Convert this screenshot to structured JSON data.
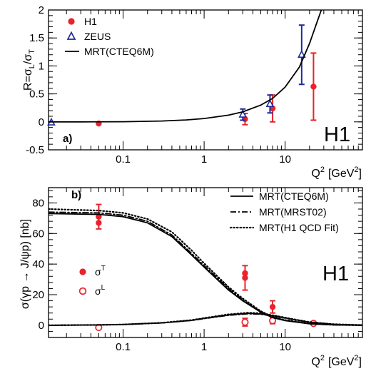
{
  "chart_data": [
    {
      "panel_label": "a)",
      "type": "scatter",
      "watermark": "H1",
      "xscale": "log",
      "xlim": [
        0.012,
        90
      ],
      "ylim": [
        -0.5,
        2
      ],
      "yticks": [
        -0.5,
        0,
        0.5,
        1,
        1.5,
        2
      ],
      "xlabel_base": "Q",
      "xlabel_sup": "2",
      "xlabel_unit": "[GeV",
      "xlabel_unit_sup": "2",
      "xlabel_close": "]",
      "ylabel_r": "R=σ",
      "ylabel_l_sub": "L",
      "ylabel_slash": "/σ",
      "ylabel_t_sub": "T",
      "legend_position": "top-left",
      "series": [
        {
          "name": "H1",
          "marker": "circle",
          "color": "#e8232b",
          "points": [
            {
              "x": 0.05,
              "y": -0.03,
              "err": 0
            },
            {
              "x": 3.2,
              "y": 0.05,
              "err": 0.1
            },
            {
              "x": 7.0,
              "y": 0.24,
              "err": 0.24
            },
            {
              "x": 22.4,
              "y": 0.63,
              "err": 0.6
            }
          ]
        },
        {
          "name": "ZEUS",
          "marker": "triangle",
          "color": "#1e2d9a",
          "points": [
            {
              "x": 0.013,
              "y": -0.01,
              "err": 0
            },
            {
              "x": 3.0,
              "y": 0.13,
              "err": 0.1
            },
            {
              "x": 6.5,
              "y": 0.32,
              "err": 0.16
            },
            {
              "x": 16.0,
              "y": 1.2,
              "err": 0.53
            }
          ]
        },
        {
          "name": "MRT(CTEQ6M)",
          "style": "solid",
          "color": "#000000",
          "curve": [
            [
              0.012,
              0.0
            ],
            [
              0.03,
              0.0
            ],
            [
              0.1,
              0.003
            ],
            [
              0.3,
              0.015
            ],
            [
              0.6,
              0.035
            ],
            [
              1,
              0.06
            ],
            [
              2,
              0.12
            ],
            [
              3,
              0.18
            ],
            [
              5,
              0.3
            ],
            [
              7,
              0.42
            ],
            [
              10,
              0.62
            ],
            [
              15,
              0.98
            ],
            [
              20,
              1.4
            ],
            [
              25,
              1.8
            ],
            [
              28,
              2.0
            ]
          ]
        }
      ]
    },
    {
      "panel_label": "b)",
      "type": "scatter",
      "watermark": "H1",
      "xscale": "log",
      "xlim": [
        0.012,
        90
      ],
      "ylim": [
        -8,
        90
      ],
      "yticks": [
        0,
        20,
        40,
        60,
        80
      ],
      "xlabel_base": "Q",
      "xlabel_sup": "2",
      "xlabel_unit": "[GeV",
      "xlabel_unit_sup": "2",
      "xlabel_close": "]",
      "ylabel": "σ(γp → J/ψp) [nb]",
      "legend_position": "top-right",
      "series": [
        {
          "name": "σ",
          "name_sup": "T",
          "marker": "circle",
          "color": "#e8232b",
          "points": [
            {
              "x": 0.05,
              "y": 71,
              "err": 8
            },
            {
              "x": 0.05,
              "y": 67,
              "err": 0
            },
            {
              "x": 3.2,
              "y": 31,
              "err": 8
            },
            {
              "x": 3.2,
              "y": 34,
              "err": 0
            },
            {
              "x": 7.0,
              "y": 12,
              "err": 4
            },
            {
              "x": 22.4,
              "y": 1.6,
              "err": 0.8
            }
          ]
        },
        {
          "name": "σ",
          "name_sup": "L",
          "marker": "open-circle",
          "color": "#e8232b",
          "points": [
            {
              "x": 0.05,
              "y": -1.5,
              "err": 0
            },
            {
              "x": 3.2,
              "y": 2,
              "err": 2.5
            },
            {
              "x": 7.0,
              "y": 3,
              "err": 2
            },
            {
              "x": 22.4,
              "y": 1.2,
              "err": 0.5
            }
          ]
        },
        {
          "name": "MRT(CTEQ6M)",
          "style": "solid",
          "color": "#000000",
          "curves": [
            [
              [
                0.012,
                73
              ],
              [
                0.05,
                72.5
              ],
              [
                0.1,
                71
              ],
              [
                0.2,
                67
              ],
              [
                0.4,
                58
              ],
              [
                0.7,
                46
              ],
              [
                1,
                38
              ],
              [
                2,
                23
              ],
              [
                3,
                16
              ],
              [
                5,
                8.5
              ],
              [
                7,
                5
              ],
              [
                10,
                3
              ],
              [
                20,
                0.9
              ],
              [
                40,
                0.2
              ],
              [
                90,
                0
              ]
            ],
            [
              [
                0.012,
                0
              ],
              [
                0.05,
                0.2
              ],
              [
                0.1,
                0.5
              ],
              [
                0.3,
                1.5
              ],
              [
                0.7,
                3.2
              ],
              [
                1,
                4.5
              ],
              [
                2,
                6.8
              ],
              [
                3.5,
                7.8
              ],
              [
                5,
                7.4
              ],
              [
                8,
                5.8
              ],
              [
                12,
                4
              ],
              [
                20,
                2
              ],
              [
                40,
                0.6
              ],
              [
                90,
                0.1
              ]
            ]
          ]
        },
        {
          "name": "MRT(MRST02)",
          "style": "dashdot",
          "color": "#000000",
          "curves": [
            [
              [
                0.012,
                74
              ],
              [
                0.05,
                73.5
              ],
              [
                0.1,
                72
              ],
              [
                0.2,
                68
              ],
              [
                0.4,
                59
              ],
              [
                0.7,
                47
              ],
              [
                1,
                39
              ],
              [
                2,
                24
              ],
              [
                3,
                16.5
              ],
              [
                5,
                8.8
              ],
              [
                7,
                5.2
              ],
              [
                10,
                3.2
              ],
              [
                20,
                1
              ],
              [
                40,
                0.2
              ],
              [
                90,
                0
              ]
            ],
            [
              [
                0.012,
                0
              ],
              [
                0.05,
                0.2
              ],
              [
                0.1,
                0.5
              ],
              [
                0.3,
                1.5
              ],
              [
                0.7,
                3.1
              ],
              [
                1,
                4.3
              ],
              [
                2,
                6.5
              ],
              [
                3.5,
                7.5
              ],
              [
                5,
                7.2
              ],
              [
                8,
                5.6
              ],
              [
                12,
                3.9
              ],
              [
                20,
                1.9
              ],
              [
                40,
                0.6
              ],
              [
                90,
                0.1
              ]
            ]
          ]
        },
        {
          "name": "MRT(H1 QCD Fit)",
          "style": "dotted",
          "color": "#000000",
          "curves": [
            [
              [
                0.012,
                76
              ],
              [
                0.05,
                75
              ],
              [
                0.1,
                73.5
              ],
              [
                0.2,
                69.5
              ],
              [
                0.4,
                61
              ],
              [
                0.7,
                49
              ],
              [
                1,
                40.5
              ],
              [
                2,
                25
              ],
              [
                3,
                17.5
              ],
              [
                5,
                9.2
              ],
              [
                7,
                5.5
              ],
              [
                10,
                3.4
              ],
              [
                20,
                1.1
              ],
              [
                40,
                0.3
              ],
              [
                90,
                0
              ]
            ],
            [
              [
                0.012,
                0
              ],
              [
                0.05,
                0.2
              ],
              [
                0.1,
                0.5
              ],
              [
                0.3,
                1.6
              ],
              [
                0.7,
                3.4
              ],
              [
                1,
                4.7
              ],
              [
                2,
                7.1
              ],
              [
                3.5,
                8.2
              ],
              [
                5,
                7.8
              ],
              [
                8,
                6
              ],
              [
                12,
                4.2
              ],
              [
                20,
                2.1
              ],
              [
                40,
                0.7
              ],
              [
                90,
                0.1
              ]
            ]
          ]
        }
      ]
    }
  ]
}
